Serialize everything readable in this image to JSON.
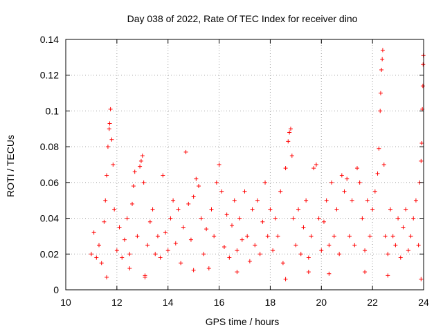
{
  "chart_data": {
    "type": "scatter",
    "title": "Day 038 of 2022, Rate Of TEC Index for receiver dino",
    "xlabel": "GPS time / hours",
    "ylabel": "ROTI / TECUs",
    "xlim": [
      10,
      24
    ],
    "ylim": [
      0,
      0.14
    ],
    "x_ticks": [
      10,
      12,
      14,
      16,
      18,
      20,
      22,
      24
    ],
    "x_tick_labels": [
      "10",
      "12",
      "14",
      "16",
      "18",
      "20",
      "22",
      "24"
    ],
    "y_ticks": [
      0,
      0.02,
      0.04,
      0.06,
      0.08,
      0.1,
      0.12,
      0.14
    ],
    "y_tick_labels": [
      "0",
      "0.02",
      "0.04",
      "0.06",
      "0.08",
      "0.1",
      "0.12",
      "0.14"
    ],
    "grid": true,
    "marker": "plus",
    "color": "#ff0000",
    "points": [
      [
        11.0,
        0.02
      ],
      [
        11.1,
        0.032
      ],
      [
        11.2,
        0.018
      ],
      [
        11.3,
        0.025
      ],
      [
        11.4,
        0.015
      ],
      [
        11.5,
        0.038
      ],
      [
        11.55,
        0.05
      ],
      [
        11.6,
        0.064
      ],
      [
        11.65,
        0.08
      ],
      [
        11.7,
        0.09
      ],
      [
        11.72,
        0.093
      ],
      [
        11.75,
        0.101
      ],
      [
        11.8,
        0.084
      ],
      [
        11.85,
        0.07
      ],
      [
        11.9,
        0.045
      ],
      [
        12.0,
        0.022
      ],
      [
        12.1,
        0.035
      ],
      [
        12.2,
        0.018
      ],
      [
        12.3,
        0.028
      ],
      [
        12.4,
        0.04
      ],
      [
        12.5,
        0.02
      ],
      [
        12.6,
        0.048
      ],
      [
        12.65,
        0.058
      ],
      [
        12.7,
        0.066
      ],
      [
        12.8,
        0.03
      ],
      [
        12.9,
        0.069
      ],
      [
        12.95,
        0.072
      ],
      [
        13.0,
        0.075
      ],
      [
        13.05,
        0.06
      ],
      [
        13.1,
        0.008
      ],
      [
        13.2,
        0.025
      ],
      [
        13.3,
        0.038
      ],
      [
        13.4,
        0.045
      ],
      [
        13.5,
        0.02
      ],
      [
        13.6,
        0.03
      ],
      [
        13.7,
        0.018
      ],
      [
        13.8,
        0.064
      ],
      [
        13.9,
        0.032
      ],
      [
        14.0,
        0.022
      ],
      [
        14.1,
        0.04
      ],
      [
        14.2,
        0.05
      ],
      [
        14.3,
        0.026
      ],
      [
        14.4,
        0.045
      ],
      [
        14.5,
        0.015
      ],
      [
        14.6,
        0.035
      ],
      [
        14.7,
        0.077
      ],
      [
        14.8,
        0.048
      ],
      [
        14.9,
        0.028
      ],
      [
        15.0,
        0.052
      ],
      [
        15.1,
        0.062
      ],
      [
        15.2,
        0.058
      ],
      [
        15.3,
        0.04
      ],
      [
        15.4,
        0.02
      ],
      [
        15.5,
        0.034
      ],
      [
        15.6,
        0.012
      ],
      [
        15.7,
        0.045
      ],
      [
        15.8,
        0.03
      ],
      [
        15.9,
        0.06
      ],
      [
        16.0,
        0.07
      ],
      [
        16.1,
        0.055
      ],
      [
        16.2,
        0.024
      ],
      [
        16.3,
        0.042
      ],
      [
        16.4,
        0.018
      ],
      [
        16.5,
        0.036
      ],
      [
        16.6,
        0.05
      ],
      [
        16.7,
        0.022
      ],
      [
        16.8,
        0.04
      ],
      [
        16.9,
        0.028
      ],
      [
        17.0,
        0.055
      ],
      [
        17.1,
        0.03
      ],
      [
        17.2,
        0.016
      ],
      [
        17.3,
        0.045
      ],
      [
        17.4,
        0.025
      ],
      [
        17.5,
        0.05
      ],
      [
        17.6,
        0.02
      ],
      [
        17.7,
        0.038
      ],
      [
        17.8,
        0.06
      ],
      [
        17.9,
        0.03
      ],
      [
        18.0,
        0.045
      ],
      [
        18.1,
        0.022
      ],
      [
        18.2,
        0.04
      ],
      [
        18.3,
        0.03
      ],
      [
        18.4,
        0.055
      ],
      [
        18.5,
        0.015
      ],
      [
        18.6,
        0.068
      ],
      [
        18.7,
        0.083
      ],
      [
        18.75,
        0.088
      ],
      [
        18.8,
        0.09
      ],
      [
        18.85,
        0.075
      ],
      [
        18.9,
        0.04
      ],
      [
        19.0,
        0.025
      ],
      [
        19.1,
        0.045
      ],
      [
        19.2,
        0.02
      ],
      [
        19.3,
        0.035
      ],
      [
        19.4,
        0.05
      ],
      [
        19.5,
        0.018
      ],
      [
        19.6,
        0.03
      ],
      [
        19.7,
        0.068
      ],
      [
        19.8,
        0.07
      ],
      [
        19.9,
        0.04
      ],
      [
        20.0,
        0.022
      ],
      [
        20.1,
        0.038
      ],
      [
        20.2,
        0.05
      ],
      [
        20.3,
        0.025
      ],
      [
        20.4,
        0.06
      ],
      [
        20.5,
        0.03
      ],
      [
        20.6,
        0.045
      ],
      [
        20.7,
        0.02
      ],
      [
        20.8,
        0.064
      ],
      [
        20.9,
        0.055
      ],
      [
        21.0,
        0.062
      ],
      [
        21.1,
        0.03
      ],
      [
        21.2,
        0.05
      ],
      [
        21.3,
        0.025
      ],
      [
        21.4,
        0.068
      ],
      [
        21.5,
        0.06
      ],
      [
        21.6,
        0.04
      ],
      [
        21.7,
        0.022
      ],
      [
        21.8,
        0.05
      ],
      [
        21.9,
        0.03
      ],
      [
        22.0,
        0.045
      ],
      [
        22.1,
        0.055
      ],
      [
        22.2,
        0.065
      ],
      [
        22.25,
        0.079
      ],
      [
        22.3,
        0.1
      ],
      [
        22.32,
        0.11
      ],
      [
        22.35,
        0.123
      ],
      [
        22.38,
        0.129
      ],
      [
        22.4,
        0.134
      ],
      [
        22.45,
        0.07
      ],
      [
        22.5,
        0.03
      ],
      [
        22.6,
        0.02
      ],
      [
        22.7,
        0.045
      ],
      [
        22.8,
        0.03
      ],
      [
        22.9,
        0.025
      ],
      [
        23.0,
        0.04
      ],
      [
        23.1,
        0.018
      ],
      [
        23.2,
        0.035
      ],
      [
        23.3,
        0.045
      ],
      [
        23.4,
        0.022
      ],
      [
        23.5,
        0.03
      ],
      [
        23.6,
        0.04
      ],
      [
        23.7,
        0.05
      ],
      [
        23.8,
        0.025
      ],
      [
        23.85,
        0.06
      ],
      [
        23.9,
        0.072
      ],
      [
        23.93,
        0.082
      ],
      [
        23.95,
        0.101
      ],
      [
        23.97,
        0.114
      ],
      [
        23.98,
        0.126
      ],
      [
        23.99,
        0.131
      ],
      [
        23.9,
        0.006
      ],
      [
        22.6,
        0.008
      ],
      [
        18.6,
        0.006
      ],
      [
        13.1,
        0.007
      ],
      [
        11.6,
        0.007
      ],
      [
        16.7,
        0.01
      ],
      [
        20.3,
        0.009
      ],
      [
        15.0,
        0.011
      ],
      [
        21.7,
        0.01
      ],
      [
        12.5,
        0.012
      ],
      [
        19.5,
        0.01
      ]
    ]
  }
}
